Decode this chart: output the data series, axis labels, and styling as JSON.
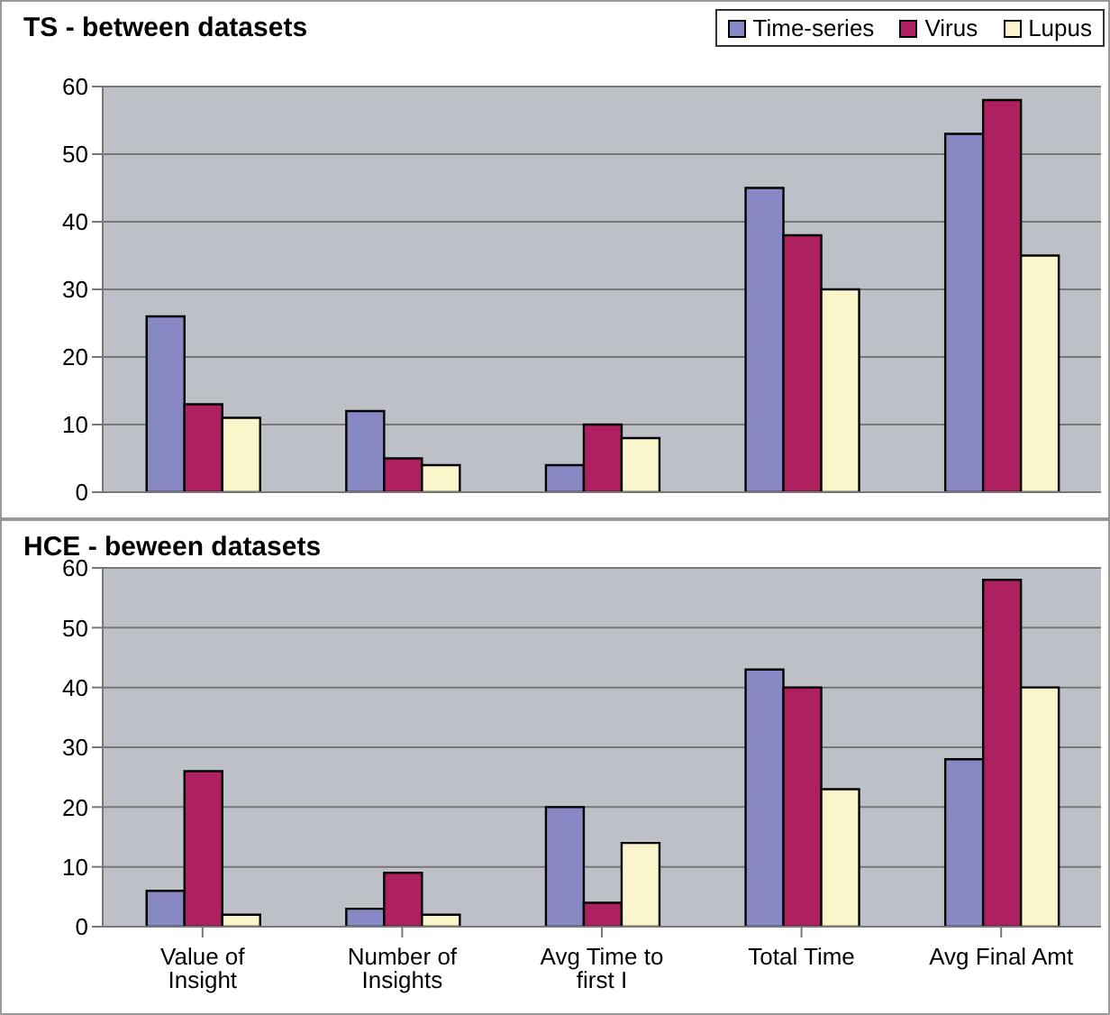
{
  "chart_data": [
    {
      "type": "bar",
      "title": "TS - between datasets",
      "categories": [
        null,
        null,
        null,
        null,
        null
      ],
      "tick_labels": "y",
      "legend": "top right",
      "grid": "y",
      "ylim": [
        0,
        60
      ],
      "yticks": [
        0,
        10,
        20,
        30,
        40,
        50,
        60
      ],
      "series": [
        {
          "name": "Time-series",
          "color": "#8888c4",
          "values": [
            26,
            12,
            4,
            45,
            53
          ]
        },
        {
          "name": "Virus",
          "color": "#ae2060",
          "values": [
            13,
            5,
            10,
            38,
            58
          ]
        },
        {
          "name": "Lupus",
          "color": "#fbf5cc",
          "values": [
            11,
            4,
            8,
            30,
            35
          ]
        }
      ]
    },
    {
      "type": "bar",
      "title": "HCE - beween datasets",
      "categories": [
        "Value of Insight",
        "Number of Insights",
        "Avg Time to first I",
        "Total Time",
        "Avg Final Amt"
      ],
      "grid": "y",
      "ylim": [
        0,
        60
      ],
      "yticks": [
        0,
        10,
        20,
        30,
        40,
        50,
        60
      ],
      "series": [
        {
          "color": "#8888c4",
          "values": [
            6,
            3,
            20,
            43,
            28
          ]
        },
        {
          "color": "#ae2060",
          "values": [
            26,
            9,
            4,
            40,
            58
          ]
        },
        {
          "color": "#fbf5cc",
          "values": [
            2,
            2,
            14,
            23,
            40
          ]
        }
      ]
    }
  ]
}
